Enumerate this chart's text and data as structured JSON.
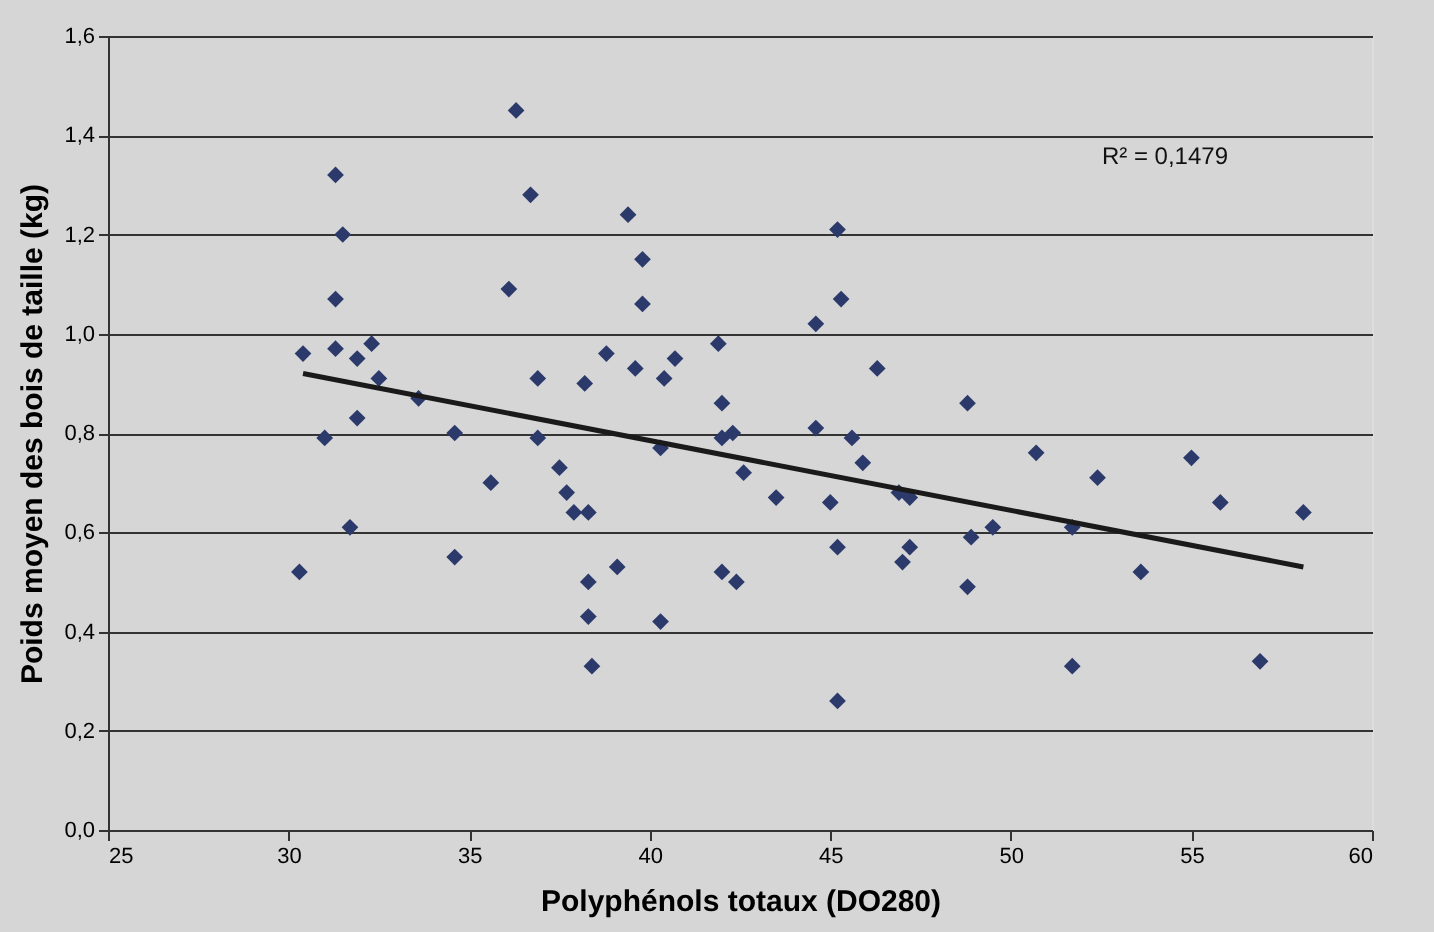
{
  "chart_data": {
    "type": "scatter",
    "xlabel": "Polyphénols totaux (DO280)",
    "ylabel": "Poids moyen des bois de taille (kg)",
    "xlim": [
      25,
      60
    ],
    "xticks": [
      25,
      30,
      35,
      40,
      45,
      50,
      55,
      60
    ],
    "ylim": [
      0,
      1.6
    ],
    "yticks": [
      {
        "value": 0,
        "label": "0,0"
      },
      {
        "value": 0.2,
        "label": "0,2"
      },
      {
        "value": 0.4,
        "label": "0,4"
      },
      {
        "value": 0.6,
        "label": "0,6"
      },
      {
        "value": 0.8,
        "label": "0,8"
      },
      {
        "value": 1.0,
        "label": "1,0"
      },
      {
        "value": 1.2,
        "label": "1,2"
      },
      {
        "value": 1.4,
        "label": "1,4"
      },
      {
        "value": 1.6,
        "label": "1,6"
      }
    ],
    "grid": "y",
    "annotations": [
      "R² = 0,1479"
    ],
    "series": [
      {
        "marker": "diamond",
        "color": "#2b3a6b",
        "x": [
          30.3,
          31.0,
          31.9,
          33.6,
          32.5,
          31.9,
          31.3,
          32.3,
          30.4,
          31.3,
          31.5,
          31.3,
          36.3,
          36.7,
          36.1,
          36.9,
          36.9,
          38.2,
          38.8,
          39.6,
          39.4,
          39.8,
          39.8,
          40.4,
          40.7,
          40.3,
          37.5,
          37.7,
          37.9,
          38.3,
          39.1,
          38.3,
          38.3,
          38.4,
          40.3,
          31.7,
          34.6,
          34.6,
          35.6,
          45.2,
          45.3,
          44.6,
          41.9,
          46.3,
          48.8,
          42.0,
          42.0,
          42.3,
          44.6,
          45.6,
          45.9,
          42.6,
          43.5,
          45.0,
          46.9,
          47.2,
          50.7,
          49.5,
          48.9,
          45.2,
          47.2,
          47.0,
          42.0,
          42.4,
          48.8,
          45.2,
          52.4,
          55.0,
          55.8,
          58.1,
          51.7,
          53.6,
          51.7,
          56.9
        ],
        "values": [
          0.52,
          0.79,
          0.83,
          0.87,
          0.91,
          0.95,
          0.97,
          0.98,
          0.96,
          1.07,
          1.2,
          1.32,
          1.45,
          1.28,
          1.09,
          0.91,
          0.79,
          0.9,
          0.96,
          0.93,
          1.24,
          1.15,
          1.06,
          0.91,
          0.95,
          0.77,
          0.73,
          0.68,
          0.64,
          0.64,
          0.53,
          0.5,
          0.43,
          0.33,
          0.42,
          0.61,
          0.8,
          0.55,
          0.7,
          1.21,
          1.07,
          1.02,
          0.98,
          0.93,
          0.86,
          0.86,
          0.79,
          0.8,
          0.81,
          0.79,
          0.74,
          0.72,
          0.67,
          0.66,
          0.68,
          0.67,
          0.76,
          0.61,
          0.59,
          0.57,
          0.57,
          0.54,
          0.52,
          0.5,
          0.49,
          0.26,
          0.71,
          0.75,
          0.66,
          0.64,
          0.61,
          0.52,
          0.33,
          0.34
        ]
      },
      {
        "type": "line",
        "line_style": "solid",
        "color": "#1a1a1a",
        "x": [
          30.4,
          58.1
        ],
        "values": [
          0.92,
          0.53
        ]
      }
    ]
  }
}
